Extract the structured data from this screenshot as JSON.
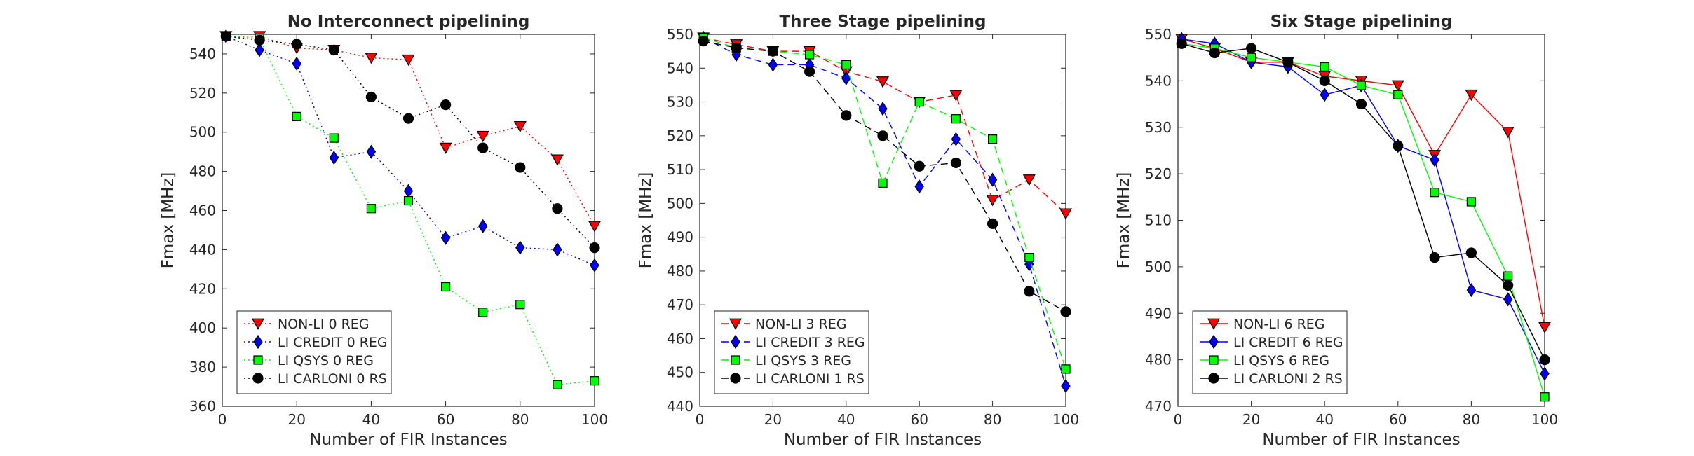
{
  "chart_data": [
    {
      "type": "line",
      "title": "No Interconnect pipelining",
      "xlabel": "Number of FIR Instances",
      "ylabel": "Fmax [MHz]",
      "xlim": [
        0,
        100
      ],
      "ylim": [
        360,
        550
      ],
      "xticks": [
        0,
        20,
        40,
        60,
        80,
        100
      ],
      "yticks": [
        360,
        380,
        400,
        420,
        440,
        460,
        480,
        500,
        520,
        540
      ],
      "line_style": "dotted",
      "legend_position": "bottom-left",
      "x": [
        1,
        10,
        20,
        30,
        40,
        50,
        60,
        70,
        80,
        90,
        100
      ],
      "series": [
        {
          "name": "NON-LI 0 REG",
          "color": "#ff0000",
          "marker": "triangle-down",
          "values": [
            549,
            549,
            543,
            542,
            538,
            537,
            492,
            498,
            503,
            486,
            452
          ]
        },
        {
          "name": "LI CREDIT 0 REG",
          "color": "#0000ff",
          "marker": "diamond",
          "values": [
            549,
            542,
            535,
            487,
            490,
            470,
            446,
            452,
            441,
            440,
            432
          ]
        },
        {
          "name": "LI QSYS 0 REG",
          "color": "#00ff00",
          "marker": "square",
          "values": [
            549,
            548,
            508,
            497,
            461,
            465,
            421,
            408,
            412,
            371,
            373
          ]
        },
        {
          "name": "LI CARLONI 0 RS",
          "color": "#000000",
          "marker": "circle",
          "values": [
            549,
            547,
            545,
            542,
            518,
            507,
            514,
            492,
            482,
            461,
            441
          ]
        }
      ]
    },
    {
      "type": "line",
      "title": "Three Stage pipelining",
      "xlabel": "Number of FIR Instances",
      "ylabel": "Fmax [MHz]",
      "xlim": [
        0,
        100
      ],
      "ylim": [
        440,
        550
      ],
      "xticks": [
        0,
        20,
        40,
        60,
        80,
        100
      ],
      "yticks": [
        440,
        450,
        460,
        470,
        480,
        490,
        500,
        510,
        520,
        530,
        540,
        550
      ],
      "line_style": "dashed",
      "legend_position": "bottom-left",
      "x": [
        1,
        10,
        20,
        30,
        40,
        50,
        60,
        70,
        80,
        90,
        100
      ],
      "series": [
        {
          "name": "NON-LI 3 REG",
          "color": "#ff0000",
          "marker": "triangle-down",
          "values": [
            549,
            547,
            545,
            545,
            539,
            536,
            530,
            532,
            501,
            507,
            497
          ]
        },
        {
          "name": "LI CREDIT 3 REG",
          "color": "#0000ff",
          "marker": "diamond",
          "values": [
            549,
            544,
            541,
            541,
            537,
            528,
            505,
            519,
            507,
            482,
            446
          ]
        },
        {
          "name": "LI QSYS 3 REG",
          "color": "#00ff00",
          "marker": "square",
          "values": [
            549,
            546,
            545,
            544,
            541,
            506,
            530,
            525,
            519,
            484,
            451
          ]
        },
        {
          "name": "LI CARLONI 1 RS",
          "color": "#000000",
          "marker": "circle",
          "values": [
            548,
            546,
            545,
            539,
            526,
            520,
            511,
            512,
            494,
            474,
            468
          ]
        }
      ]
    },
    {
      "type": "line",
      "title": "Six Stage pipelining",
      "xlabel": "Number of FIR Instances",
      "ylabel": "Fmax [MHz]",
      "xlim": [
        0,
        100
      ],
      "ylim": [
        470,
        550
      ],
      "xticks": [
        0,
        20,
        40,
        60,
        80,
        100
      ],
      "yticks": [
        470,
        480,
        490,
        500,
        510,
        520,
        530,
        540,
        550
      ],
      "line_style": "solid",
      "legend_position": "bottom-left",
      "x": [
        1,
        10,
        20,
        30,
        40,
        50,
        60,
        70,
        80,
        90,
        100
      ],
      "series": [
        {
          "name": "NON-LI 6 REG",
          "color": "#ff0000",
          "marker": "triangle-down",
          "values": [
            549,
            547,
            544,
            544,
            541,
            540,
            539,
            524,
            537,
            529,
            487
          ]
        },
        {
          "name": "LI CREDIT 6 REG",
          "color": "#0000ff",
          "marker": "diamond",
          "values": [
            549,
            548,
            544,
            543,
            537,
            539,
            526,
            523,
            495,
            493,
            477
          ]
        },
        {
          "name": "LI QSYS 6 REG",
          "color": "#00ff00",
          "marker": "square",
          "values": [
            548,
            547,
            545,
            544,
            543,
            539,
            537,
            516,
            514,
            498,
            472
          ]
        },
        {
          "name": "LI CARLONI 2 RS",
          "color": "#000000",
          "marker": "circle",
          "values": [
            548,
            546,
            547,
            544,
            540,
            535,
            526,
            502,
            503,
            496,
            480
          ]
        }
      ]
    }
  ]
}
